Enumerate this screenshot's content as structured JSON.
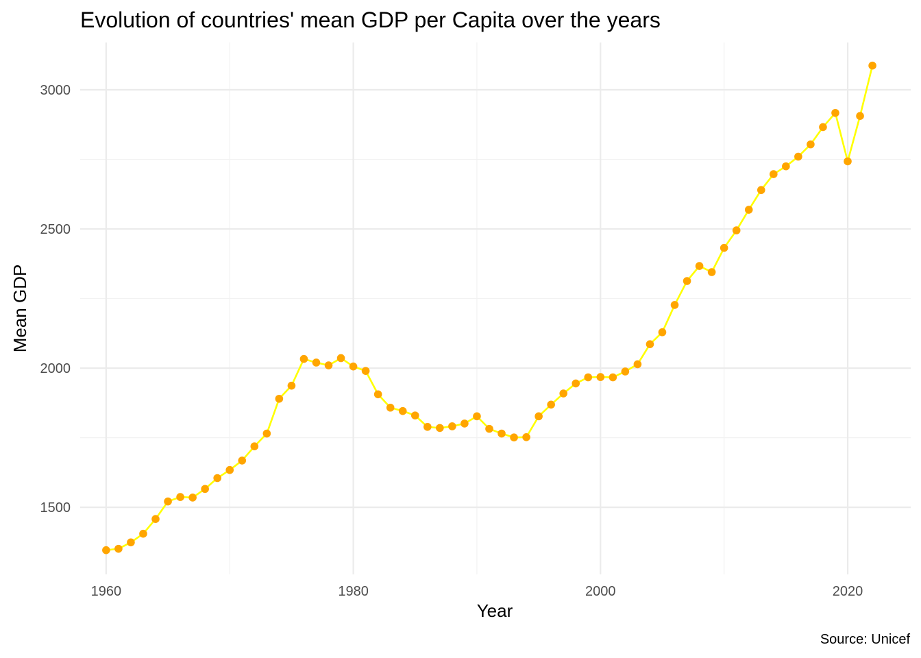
{
  "chart_data": {
    "type": "line",
    "title": "Evolution of countries' mean GDP per Capita over the years",
    "xlabel": "Year",
    "ylabel": "Mean GDP",
    "caption": "Source: Unicef",
    "xlim": [
      1957.9,
      2025.1
    ],
    "ylim": [
      1259,
      3170
    ],
    "x_ticks": [
      1960,
      1980,
      2000,
      2020
    ],
    "y_ticks": [
      1500,
      2000,
      2500,
      3000
    ],
    "grid": true,
    "legend": "none",
    "line_color": "#ffff00",
    "point_color": "#ffa500",
    "series": [
      {
        "x": [
          1960,
          1961,
          1962,
          1963,
          1964,
          1965,
          1966,
          1967,
          1968,
          1969,
          1970,
          1971,
          1972,
          1973,
          1974,
          1975,
          1976,
          1977,
          1978,
          1979,
          1980,
          1981,
          1982,
          1983,
          1984,
          1985,
          1986,
          1987,
          1988,
          1989,
          1990,
          1991,
          1992,
          1993,
          1994,
          1995,
          1996,
          1997,
          1998,
          1999,
          2000,
          2001,
          2002,
          2003,
          2004,
          2005,
          2006,
          2007,
          2008,
          2009,
          2010,
          2011,
          2012,
          2013,
          2014,
          2015,
          2016,
          2017,
          2018,
          2019,
          2020,
          2021,
          2022
        ],
        "values": [
          1346,
          1351,
          1374,
          1405,
          1458,
          1521,
          1537,
          1535,
          1566,
          1605,
          1634,
          1668,
          1719,
          1765,
          1890,
          1937,
          2033,
          2020,
          2010,
          2036,
          2006,
          1990,
          1906,
          1858,
          1846,
          1830,
          1789,
          1785,
          1791,
          1801,
          1827,
          1782,
          1765,
          1751,
          1752,
          1827,
          1869,
          1909,
          1945,
          1967,
          1968,
          1967,
          1988,
          2014,
          2086,
          2129,
          2227,
          2313,
          2367,
          2345,
          2432,
          2495,
          2569,
          2640,
          2697,
          2725,
          2760,
          2804,
          2866,
          2917,
          2743,
          2906,
          3087
        ]
      }
    ]
  }
}
